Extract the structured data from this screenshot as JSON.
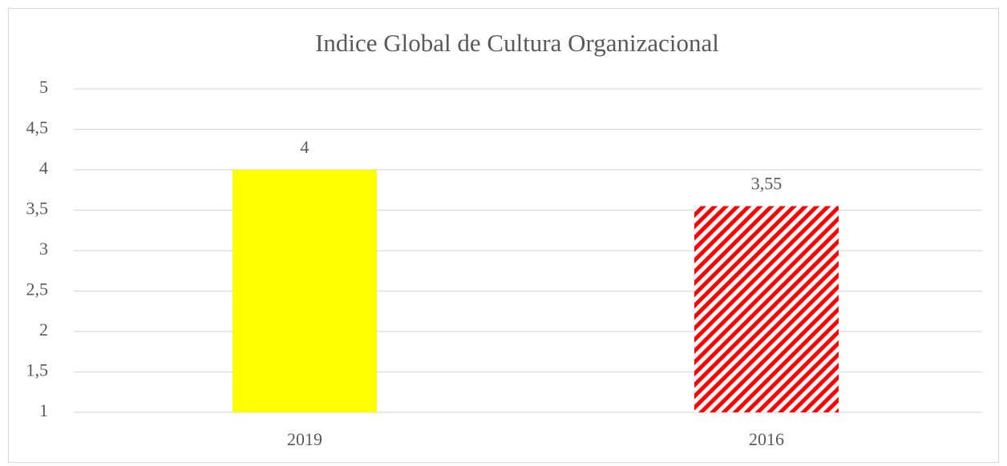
{
  "chart_data": {
    "type": "bar",
    "title": "Indice Global de Cultura Organizacional",
    "categories": [
      "2019",
      "2016"
    ],
    "values": [
      4,
      3.55
    ],
    "value_labels": [
      "4",
      "3,55"
    ],
    "colors": [
      "#ffff00",
      "#ff0000"
    ],
    "patterns": [
      "solid",
      "hatch"
    ],
    "ylim": [
      1,
      5
    ],
    "yticks": [
      1,
      {
        "value": 1.5,
        "label": "1,5"
      },
      2,
      {
        "value": 2.5,
        "label": "2,5"
      },
      3,
      {
        "value": 3.5,
        "label": "3,5"
      },
      4,
      {
        "value": 4.5,
        "label": "4,5"
      },
      5
    ],
    "grid": true
  }
}
